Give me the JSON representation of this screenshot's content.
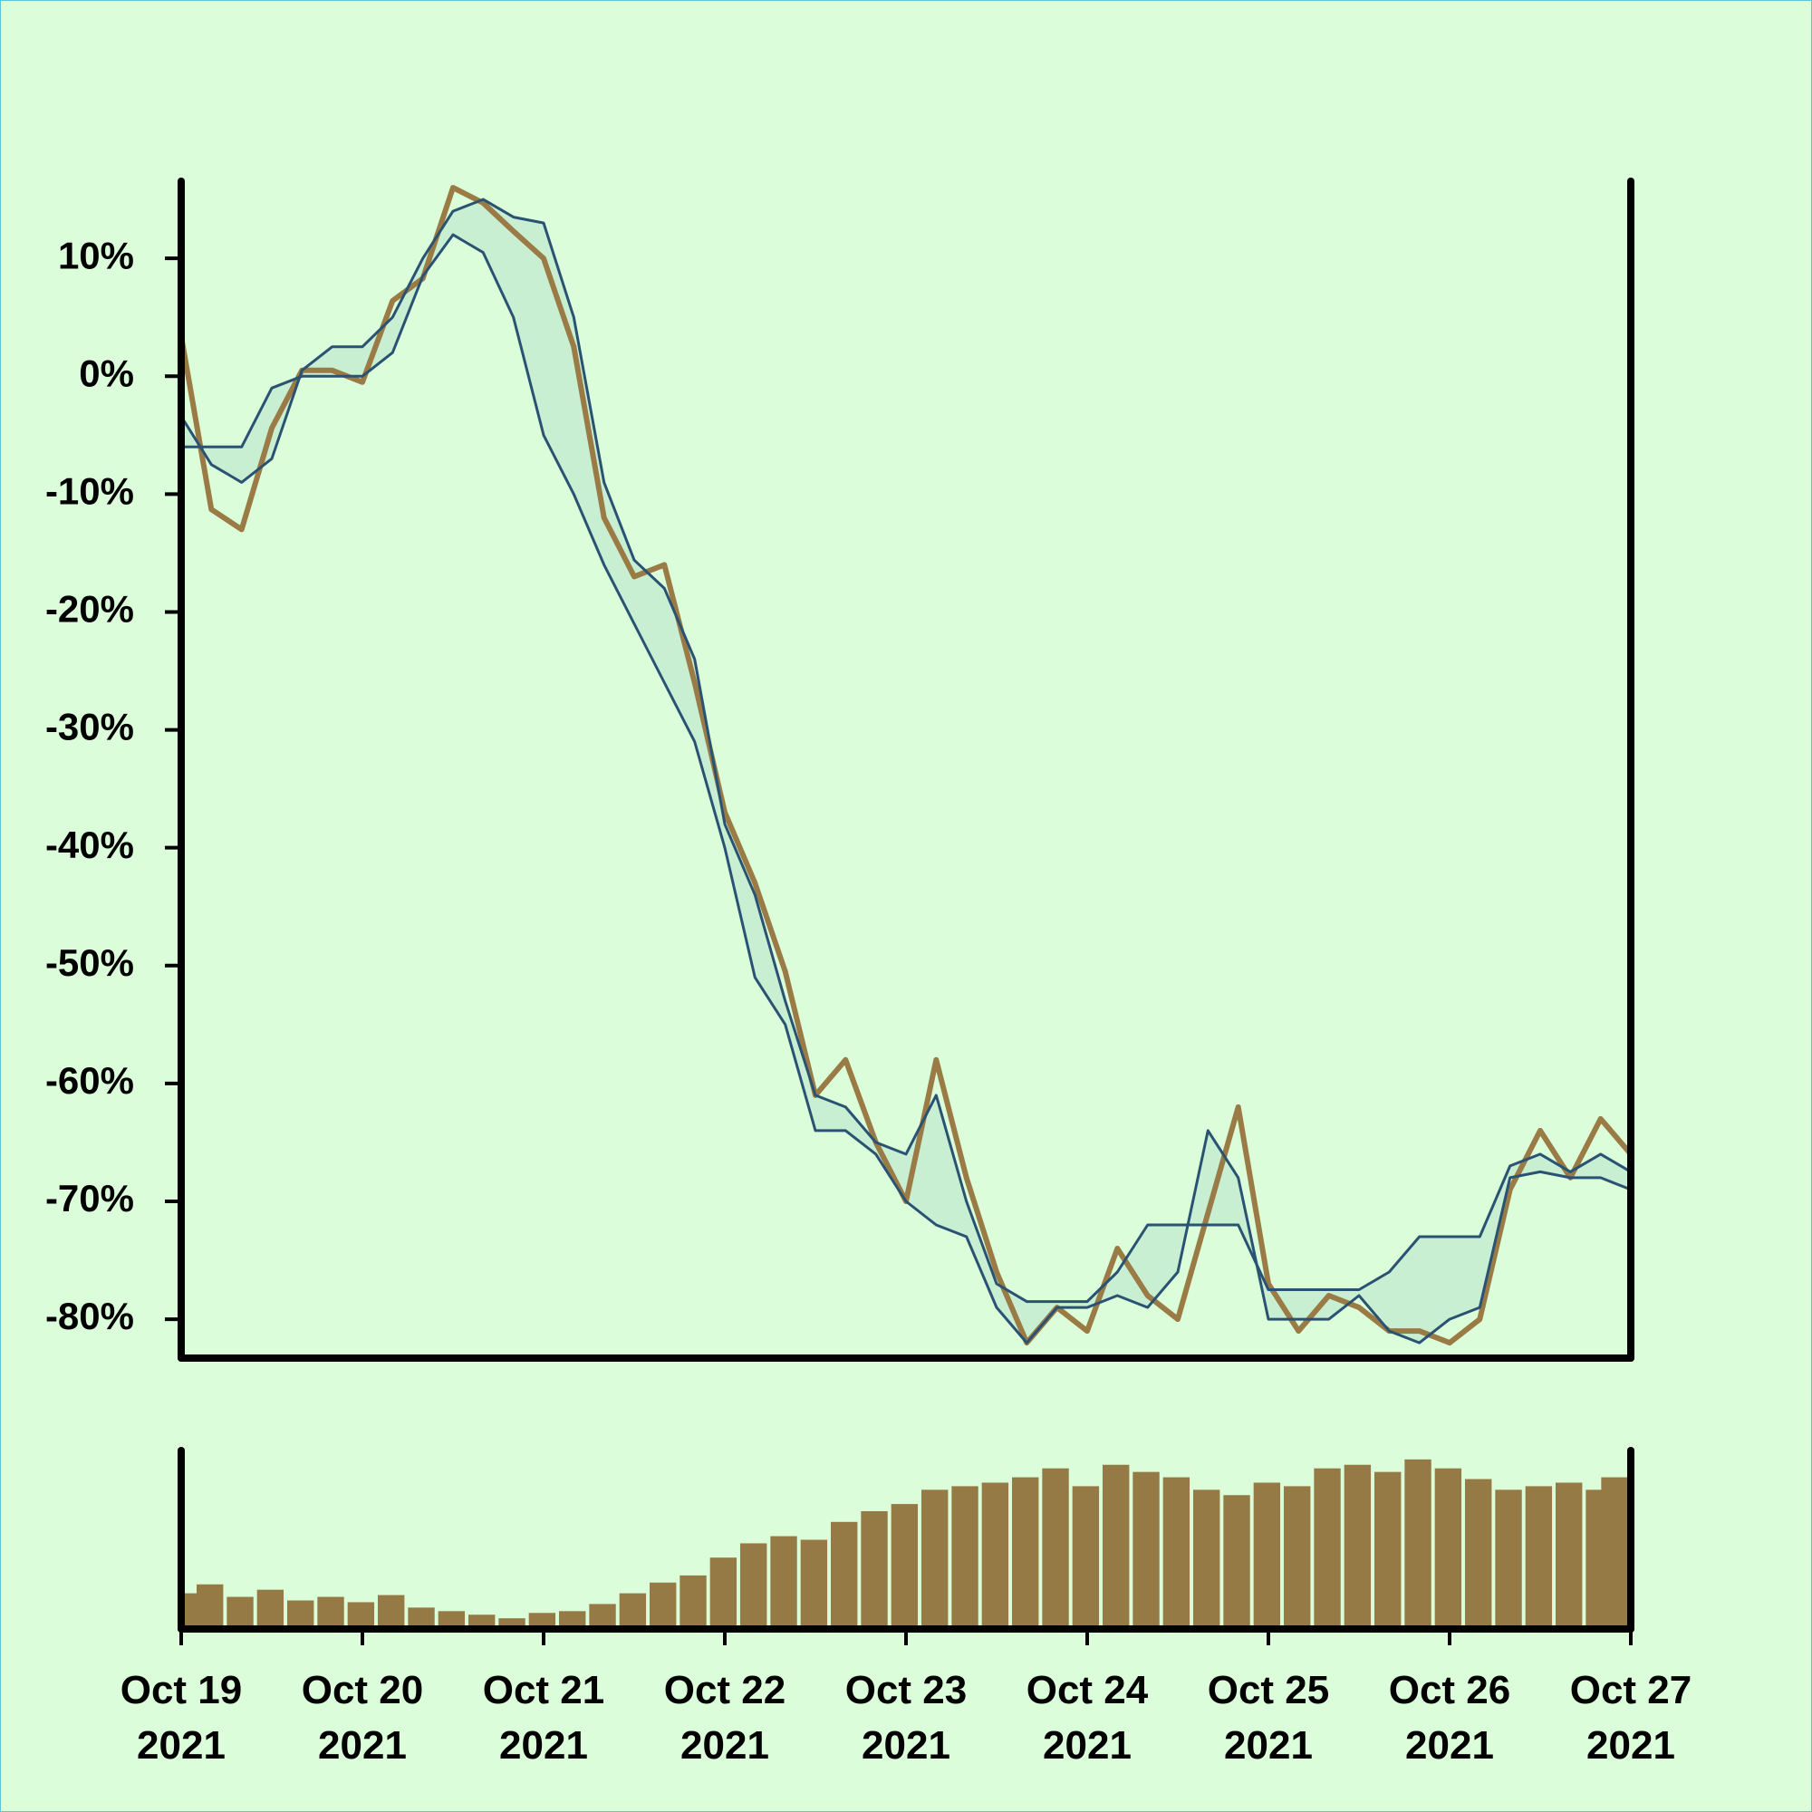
{
  "chart_data": [
    {
      "type": "line",
      "x": [
        "2021-10-19T00:00",
        "2021-10-19T04:00",
        "2021-10-19T08:00",
        "2021-10-19T12:00",
        "2021-10-19T16:00",
        "2021-10-19T20:00",
        "2021-10-20T00:00",
        "2021-10-20T04:00",
        "2021-10-20T08:00",
        "2021-10-20T12:00",
        "2021-10-20T16:00",
        "2021-10-20T20:00",
        "2021-10-21T00:00",
        "2021-10-21T04:00",
        "2021-10-21T08:00",
        "2021-10-21T12:00",
        "2021-10-21T16:00",
        "2021-10-21T20:00",
        "2021-10-22T00:00",
        "2021-10-22T04:00",
        "2021-10-22T08:00",
        "2021-10-22T12:00",
        "2021-10-22T16:00",
        "2021-10-22T20:00",
        "2021-10-23T00:00",
        "2021-10-23T04:00",
        "2021-10-23T08:00",
        "2021-10-23T12:00",
        "2021-10-23T16:00",
        "2021-10-23T20:00",
        "2021-10-24T00:00",
        "2021-10-24T04:00",
        "2021-10-24T08:00",
        "2021-10-24T12:00",
        "2021-10-24T16:00",
        "2021-10-24T20:00",
        "2021-10-25T00:00",
        "2021-10-25T04:00",
        "2021-10-25T08:00",
        "2021-10-25T12:00",
        "2021-10-25T16:00",
        "2021-10-25T20:00",
        "2021-10-26T00:00",
        "2021-10-26T04:00",
        "2021-10-26T08:00",
        "2021-10-26T12:00",
        "2021-10-26T16:00",
        "2021-10-26T20:00",
        "2021-10-27T00:00"
      ],
      "xlim": [
        "2021-10-19T00:00",
        "2021-10-27T00:00"
      ],
      "ylim": [
        -83.3,
        16.7
      ],
      "yticks": [
        {
          "value": -80,
          "label": "-80%"
        },
        {
          "value": -70,
          "label": "-70%"
        },
        {
          "value": -60,
          "label": "-60%"
        },
        {
          "value": -50,
          "label": "-50%"
        },
        {
          "value": -40,
          "label": "-40%"
        },
        {
          "value": -30,
          "label": "-30%"
        },
        {
          "value": -20,
          "label": "-20%"
        },
        {
          "value": -10,
          "label": "-10%"
        },
        {
          "value": 0,
          "label": "0%"
        },
        {
          "value": 10,
          "label": "10%"
        }
      ],
      "band_fill_color": "#c9efd3",
      "series": [
        {
          "color": "#9a7b45",
          "width": 6,
          "values": [
            3.4,
            -11.3,
            -13,
            -4.4,
            0.5,
            0.5,
            -0.5,
            6.4,
            8.3,
            16,
            14.7,
            12.3,
            10,
            2.5,
            -12,
            -17,
            -16,
            -26,
            -37,
            -43,
            -50.5,
            -61,
            -58,
            -65,
            -70,
            -58,
            -68,
            -76,
            -82,
            -79,
            -81,
            -74,
            -78,
            -80,
            -71,
            -62,
            -77,
            -81,
            -78,
            -79,
            -81,
            -81,
            -82,
            -80,
            -69,
            -64,
            -68,
            -63,
            -66
          ]
        },
        {
          "color": "#2a5272",
          "width": 3,
          "values": [
            -3.4,
            -7.5,
            -9,
            -7,
            0.5,
            2.5,
            2.5,
            5,
            10,
            14,
            15,
            13.5,
            13,
            5,
            -9,
            -15.6,
            -18,
            -24,
            -38,
            -44,
            -53,
            -61,
            -62,
            -65,
            -66,
            -61,
            -70,
            -77,
            -78.5,
            -78.5,
            -78.5,
            -76,
            -72,
            -72,
            -72,
            -72,
            -77.5,
            -77.5,
            -77.5,
            -77.5,
            -76,
            -73,
            -73,
            -73,
            -67,
            -66,
            -67.5,
            -66,
            -67.5
          ]
        },
        {
          "color": "#2a5272",
          "width": 3,
          "values": [
            -6,
            -6,
            -6,
            -1,
            0,
            0,
            0,
            2,
            8.5,
            12,
            10.5,
            5,
            -5,
            -10,
            -16,
            -21,
            -26,
            -31,
            -40,
            -51,
            -55,
            -64,
            -64,
            -66,
            -70,
            -72,
            -73,
            -79,
            -82,
            -79,
            -79,
            -78,
            -79,
            -76,
            -64,
            -68,
            -80,
            -80,
            -80,
            -78,
            -81,
            -82,
            -80,
            -79,
            -68,
            -67.5,
            -68,
            -68,
            -69
          ]
        }
      ]
    },
    {
      "type": "bar",
      "x": [
        "2021-10-19T00:00",
        "2021-10-19T04:00",
        "2021-10-19T08:00",
        "2021-10-19T12:00",
        "2021-10-19T16:00",
        "2021-10-19T20:00",
        "2021-10-20T00:00",
        "2021-10-20T04:00",
        "2021-10-20T08:00",
        "2021-10-20T12:00",
        "2021-10-20T16:00",
        "2021-10-20T20:00",
        "2021-10-21T00:00",
        "2021-10-21T04:00",
        "2021-10-21T08:00",
        "2021-10-21T12:00",
        "2021-10-21T16:00",
        "2021-10-21T20:00",
        "2021-10-22T00:00",
        "2021-10-22T04:00",
        "2021-10-22T08:00",
        "2021-10-22T12:00",
        "2021-10-22T16:00",
        "2021-10-22T20:00",
        "2021-10-23T00:00",
        "2021-10-23T04:00",
        "2021-10-23T08:00",
        "2021-10-23T12:00",
        "2021-10-23T16:00",
        "2021-10-23T20:00",
        "2021-10-24T00:00",
        "2021-10-24T04:00",
        "2021-10-24T08:00",
        "2021-10-24T12:00",
        "2021-10-24T16:00",
        "2021-10-24T20:00",
        "2021-10-25T00:00",
        "2021-10-25T04:00",
        "2021-10-25T08:00",
        "2021-10-25T12:00",
        "2021-10-25T16:00",
        "2021-10-25T20:00",
        "2021-10-26T00:00",
        "2021-10-26T04:00",
        "2021-10-26T08:00",
        "2021-10-26T12:00",
        "2021-10-26T16:00",
        "2021-10-26T20:00",
        "2021-10-27T00:00"
      ],
      "xlim": [
        "2021-10-19T00:00",
        "2021-10-27T00:00"
      ],
      "xticks": [
        {
          "value": "2021-10-19T00:00",
          "label": "Oct 19\n2021"
        },
        {
          "value": "2021-10-20T00:00",
          "label": "Oct 20\n2021"
        },
        {
          "value": "2021-10-21T00:00",
          "label": "Oct 21\n2021"
        },
        {
          "value": "2021-10-22T00:00",
          "label": "Oct 22\n2021"
        },
        {
          "value": "2021-10-23T00:00",
          "label": "Oct 23\n2021"
        },
        {
          "value": "2021-10-24T00:00",
          "label": "Oct 24\n2021"
        },
        {
          "value": "2021-10-25T00:00",
          "label": "Oct 25\n2021"
        },
        {
          "value": "2021-10-26T00:00",
          "label": "Oct 26\n2021"
        },
        {
          "value": "2021-10-27T00:00",
          "label": "Oct 27\n2021"
        }
      ],
      "ylim": [
        0,
        100
      ],
      "color": "#967a45",
      "values": [
        20,
        25,
        18,
        22,
        16,
        18,
        15,
        19,
        12,
        10,
        8,
        6,
        9,
        10,
        14,
        20,
        26,
        30,
        40,
        48,
        52,
        50,
        60,
        66,
        70,
        78,
        80,
        82,
        85,
        90,
        80,
        92,
        88,
        85,
        78,
        75,
        82,
        80,
        90,
        92,
        88,
        95,
        90,
        84,
        78,
        80,
        82,
        78,
        85
      ]
    }
  ]
}
